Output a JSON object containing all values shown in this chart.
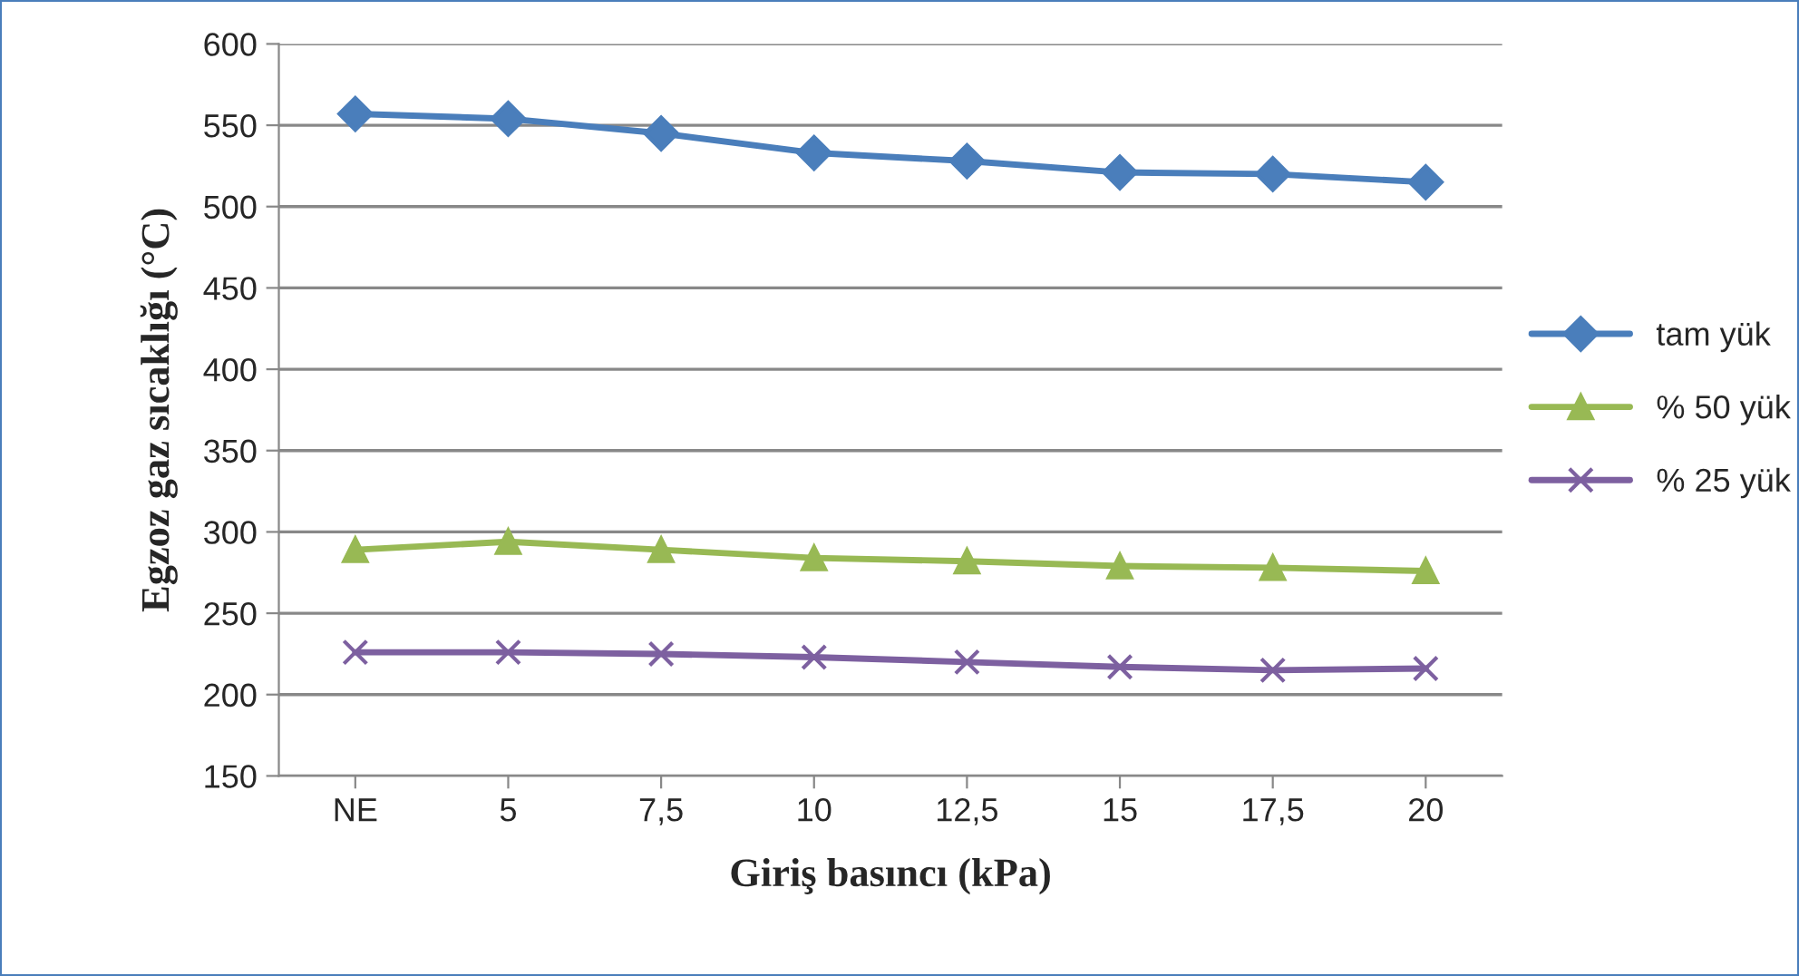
{
  "chart_data": {
    "type": "line",
    "xlabel": "Giriş basıncı (kPa)",
    "ylabel": "Egzoz gaz sıcaklığı (°C)",
    "categories": [
      "NE",
      "5",
      "7,5",
      "10",
      "12,5",
      "15",
      "17,5",
      "20"
    ],
    "series": [
      {
        "name": "tam yük",
        "color": "#4a7ebb",
        "marker": "diamond",
        "values": [
          557,
          554,
          545,
          533,
          528,
          521,
          520,
          515
        ]
      },
      {
        "name": "% 50 yük",
        "color": "#98b954",
        "marker": "triangle",
        "values": [
          289,
          294,
          289,
          284,
          282,
          279,
          278,
          276
        ]
      },
      {
        "name": "% 25 yük",
        "color": "#7d60a0",
        "marker": "cross",
        "values": [
          226,
          226,
          225,
          223,
          220,
          217,
          215,
          216
        ]
      }
    ],
    "ylim": [
      150,
      600
    ],
    "yticks": [
      150,
      200,
      250,
      300,
      350,
      400,
      450,
      500,
      550,
      600
    ],
    "grid": "y",
    "legend": "right"
  }
}
